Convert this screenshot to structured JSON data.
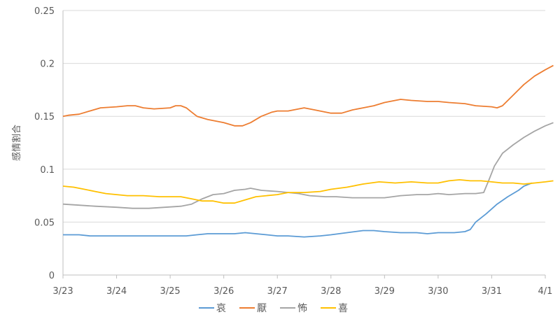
{
  "chart_data": {
    "type": "line",
    "ylabel": "感情割合",
    "ylim": [
      0,
      0.25
    ],
    "yticks": [
      "0",
      "0.05",
      "0.1",
      "0.15",
      "0.2",
      "0.25"
    ],
    "xlim": [
      0,
      9
    ],
    "xticks": [
      "3/23",
      "3/24",
      "3/25",
      "3/26",
      "3/27",
      "3/28",
      "3/29",
      "3/30",
      "3/31",
      "4/1"
    ],
    "grid": true,
    "legend": "bottom",
    "series": [
      {
        "name": "哀",
        "color": "#5b9bd5",
        "points": [
          [
            0,
            0.038
          ],
          [
            0.3,
            0.038
          ],
          [
            0.5,
            0.037
          ],
          [
            1,
            0.037
          ],
          [
            1.5,
            0.037
          ],
          [
            2,
            0.037
          ],
          [
            2.3,
            0.037
          ],
          [
            2.5,
            0.038
          ],
          [
            2.7,
            0.039
          ],
          [
            3,
            0.039
          ],
          [
            3.2,
            0.039
          ],
          [
            3.4,
            0.04
          ],
          [
            3.6,
            0.039
          ],
          [
            3.8,
            0.038
          ],
          [
            4,
            0.037
          ],
          [
            4.2,
            0.037
          ],
          [
            4.5,
            0.036
          ],
          [
            4.8,
            0.037
          ],
          [
            5,
            0.038
          ],
          [
            5.3,
            0.04
          ],
          [
            5.6,
            0.042
          ],
          [
            5.8,
            0.042
          ],
          [
            6,
            0.041
          ],
          [
            6.3,
            0.04
          ],
          [
            6.6,
            0.04
          ],
          [
            6.8,
            0.039
          ],
          [
            7,
            0.04
          ],
          [
            7.3,
            0.04
          ],
          [
            7.5,
            0.041
          ],
          [
            7.6,
            0.043
          ],
          [
            7.7,
            0.05
          ],
          [
            7.9,
            0.058
          ],
          [
            8.1,
            0.067
          ],
          [
            8.3,
            0.074
          ],
          [
            8.5,
            0.08
          ],
          [
            8.6,
            0.084
          ],
          [
            8.75,
            0.087
          ]
        ]
      },
      {
        "name": "厭",
        "color": "#ed7d31",
        "points": [
          [
            0,
            0.15
          ],
          [
            0.1,
            0.151
          ],
          [
            0.3,
            0.152
          ],
          [
            0.5,
            0.155
          ],
          [
            0.7,
            0.158
          ],
          [
            1,
            0.159
          ],
          [
            1.2,
            0.16
          ],
          [
            1.35,
            0.16
          ],
          [
            1.5,
            0.158
          ],
          [
            1.7,
            0.157
          ],
          [
            2,
            0.158
          ],
          [
            2.1,
            0.16
          ],
          [
            2.2,
            0.16
          ],
          [
            2.3,
            0.158
          ],
          [
            2.4,
            0.154
          ],
          [
            2.5,
            0.15
          ],
          [
            2.7,
            0.147
          ],
          [
            3,
            0.144
          ],
          [
            3.2,
            0.141
          ],
          [
            3.35,
            0.141
          ],
          [
            3.5,
            0.144
          ],
          [
            3.7,
            0.15
          ],
          [
            3.9,
            0.154
          ],
          [
            4,
            0.155
          ],
          [
            4.2,
            0.155
          ],
          [
            4.4,
            0.157
          ],
          [
            4.5,
            0.158
          ],
          [
            4.7,
            0.156
          ],
          [
            5,
            0.153
          ],
          [
            5.2,
            0.153
          ],
          [
            5.4,
            0.156
          ],
          [
            5.6,
            0.158
          ],
          [
            5.8,
            0.16
          ],
          [
            6,
            0.163
          ],
          [
            6.3,
            0.166
          ],
          [
            6.5,
            0.165
          ],
          [
            6.8,
            0.164
          ],
          [
            7,
            0.164
          ],
          [
            7.2,
            0.163
          ],
          [
            7.5,
            0.162
          ],
          [
            7.7,
            0.16
          ],
          [
            8,
            0.159
          ],
          [
            8.1,
            0.158
          ],
          [
            8.2,
            0.16
          ],
          [
            8.4,
            0.17
          ],
          [
            8.6,
            0.18
          ],
          [
            8.8,
            0.188
          ],
          [
            9,
            0.194
          ],
          [
            9.15,
            0.198
          ]
        ]
      },
      {
        "name": "怖",
        "color": "#a5a5a5",
        "points": [
          [
            0,
            0.067
          ],
          [
            0.3,
            0.066
          ],
          [
            0.6,
            0.065
          ],
          [
            1,
            0.064
          ],
          [
            1.3,
            0.063
          ],
          [
            1.6,
            0.063
          ],
          [
            1.9,
            0.064
          ],
          [
            2.2,
            0.065
          ],
          [
            2.4,
            0.067
          ],
          [
            2.6,
            0.072
          ],
          [
            2.8,
            0.076
          ],
          [
            3,
            0.077
          ],
          [
            3.2,
            0.08
          ],
          [
            3.4,
            0.081
          ],
          [
            3.5,
            0.082
          ],
          [
            3.7,
            0.08
          ],
          [
            4,
            0.079
          ],
          [
            4.2,
            0.078
          ],
          [
            4.4,
            0.077
          ],
          [
            4.6,
            0.075
          ],
          [
            4.9,
            0.074
          ],
          [
            5.1,
            0.074
          ],
          [
            5.4,
            0.073
          ],
          [
            5.7,
            0.073
          ],
          [
            6,
            0.073
          ],
          [
            6.3,
            0.075
          ],
          [
            6.6,
            0.076
          ],
          [
            6.8,
            0.076
          ],
          [
            7,
            0.077
          ],
          [
            7.2,
            0.076
          ],
          [
            7.5,
            0.077
          ],
          [
            7.7,
            0.077
          ],
          [
            7.85,
            0.078
          ],
          [
            7.95,
            0.09
          ],
          [
            8.05,
            0.103
          ],
          [
            8.2,
            0.115
          ],
          [
            8.4,
            0.123
          ],
          [
            8.6,
            0.13
          ],
          [
            8.8,
            0.136
          ],
          [
            9,
            0.141
          ],
          [
            9.15,
            0.144
          ]
        ]
      },
      {
        "name": "喜",
        "color": "#ffc000",
        "points": [
          [
            0,
            0.084
          ],
          [
            0.2,
            0.083
          ],
          [
            0.4,
            0.081
          ],
          [
            0.6,
            0.079
          ],
          [
            0.8,
            0.077
          ],
          [
            1,
            0.076
          ],
          [
            1.2,
            0.075
          ],
          [
            1.5,
            0.075
          ],
          [
            1.8,
            0.074
          ],
          [
            2,
            0.074
          ],
          [
            2.2,
            0.074
          ],
          [
            2.4,
            0.072
          ],
          [
            2.6,
            0.07
          ],
          [
            2.8,
            0.07
          ],
          [
            3,
            0.068
          ],
          [
            3.2,
            0.068
          ],
          [
            3.4,
            0.071
          ],
          [
            3.6,
            0.074
          ],
          [
            3.8,
            0.075
          ],
          [
            4,
            0.076
          ],
          [
            4.2,
            0.078
          ],
          [
            4.5,
            0.078
          ],
          [
            4.8,
            0.079
          ],
          [
            5,
            0.081
          ],
          [
            5.3,
            0.083
          ],
          [
            5.6,
            0.086
          ],
          [
            5.9,
            0.088
          ],
          [
            6.2,
            0.087
          ],
          [
            6.5,
            0.088
          ],
          [
            6.8,
            0.087
          ],
          [
            7,
            0.087
          ],
          [
            7.2,
            0.089
          ],
          [
            7.4,
            0.09
          ],
          [
            7.6,
            0.089
          ],
          [
            7.8,
            0.089
          ],
          [
            8,
            0.088
          ],
          [
            8.2,
            0.087
          ],
          [
            8.4,
            0.087
          ],
          [
            8.6,
            0.086
          ],
          [
            8.8,
            0.087
          ],
          [
            9,
            0.088
          ],
          [
            9.15,
            0.089
          ]
        ]
      }
    ]
  }
}
